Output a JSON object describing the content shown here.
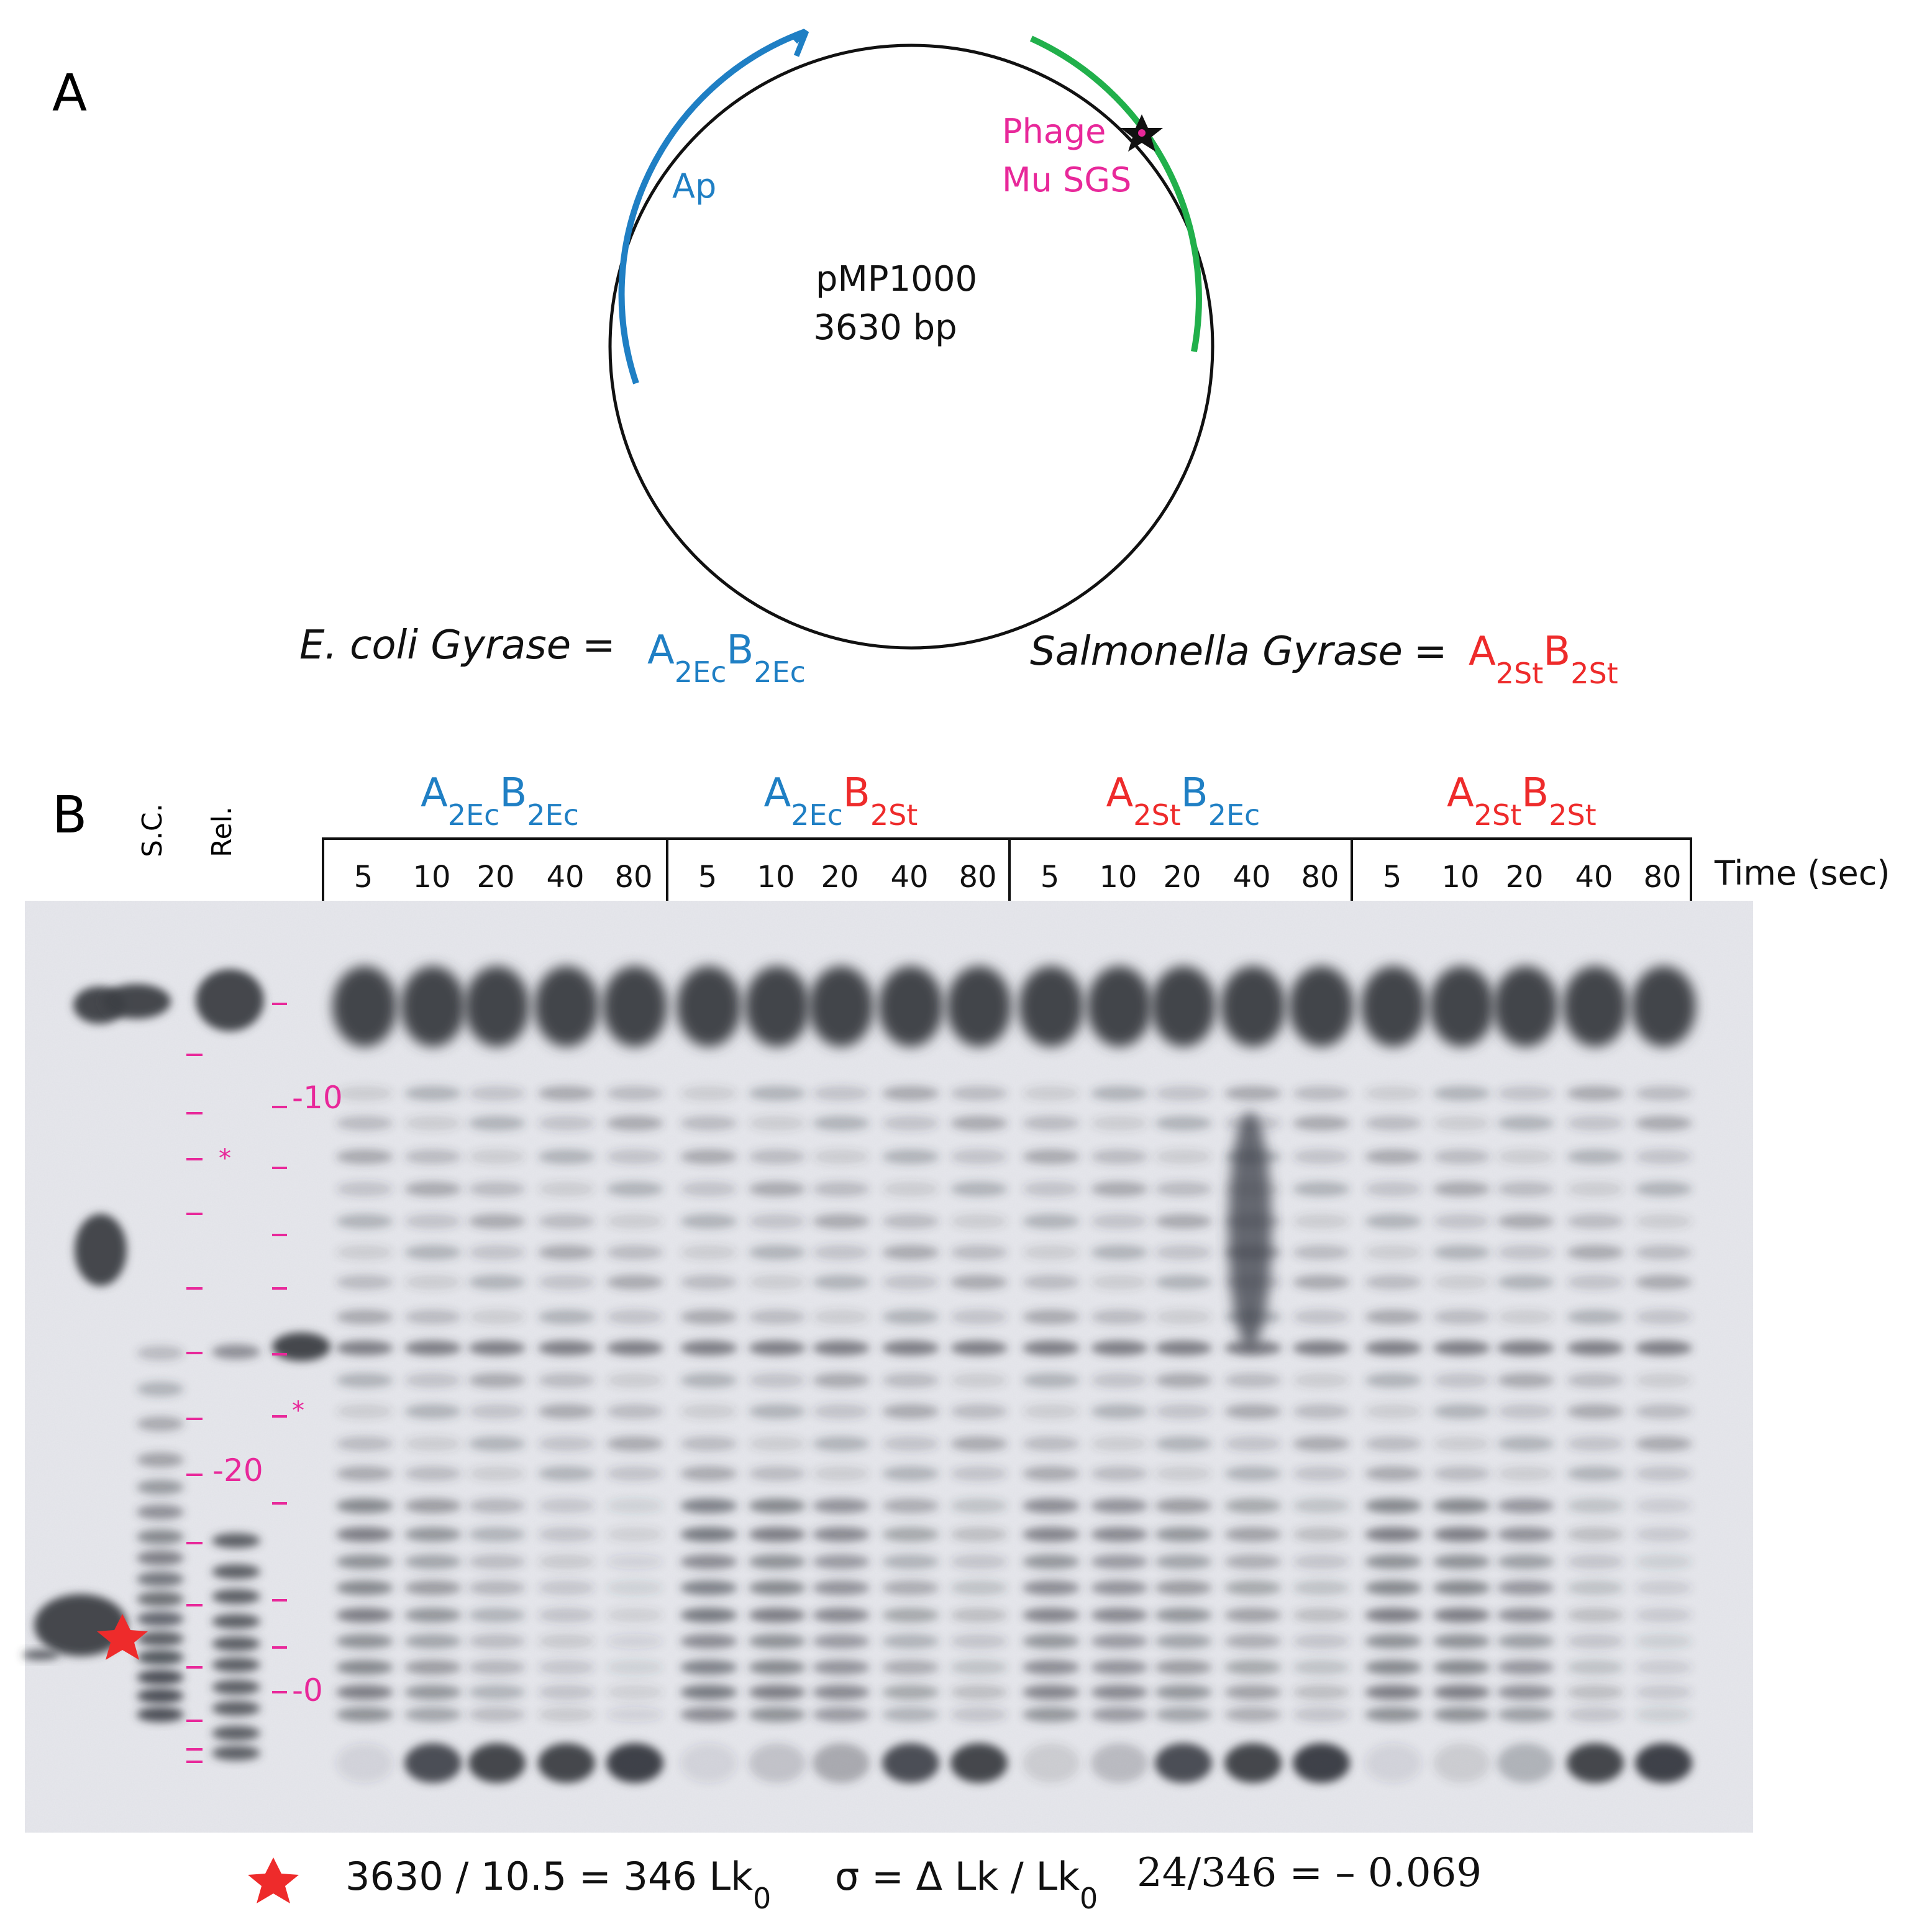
{
  "colors": {
    "blue": "#1f7fc4",
    "green": "#21b04b",
    "magenta": "#e8289a",
    "red": "#ee2b2b",
    "black": "#111111",
    "gel_background": "#e6e7ec",
    "band": "#3b3e45"
  },
  "panel_a": {
    "label": "A",
    "plasmid_name": "pMP1000",
    "plasmid_size": "3630 bp",
    "ap_label": "Ap",
    "sgs_label_line1": "Phage",
    "sgs_label_line2": "Mu SGS",
    "ecoli_label": "E. coli Gyrase",
    "ecoli_formula": {
      "a": "A",
      "a_sub": "2Ec",
      "b": "B",
      "b_sub": "2Ec"
    },
    "salmonella_label": "Salmonella Gyrase",
    "salmonella_formula": {
      "a": "A",
      "a_sub": "2St",
      "b": "B",
      "b_sub": "2St"
    },
    "equals": "="
  },
  "panel_b": {
    "label": "B",
    "lane_sc": "S.C.",
    "lane_rel": "Rel.",
    "time_label": "Time (sec)",
    "groups": [
      {
        "a": "A",
        "a_sub": "2Ec",
        "a_color": "blue",
        "b": "B",
        "b_sub": "2Ec",
        "b_color": "blue",
        "times": [
          "5",
          "10",
          "20",
          "40",
          "80"
        ]
      },
      {
        "a": "A",
        "a_sub": "2Ec",
        "a_color": "blue",
        "b": "B",
        "b_sub": "2St",
        "b_color": "red",
        "times": [
          "5",
          "10",
          "20",
          "40",
          "80"
        ]
      },
      {
        "a": "A",
        "a_sub": "2St",
        "a_color": "red",
        "b": "B",
        "b_sub": "2Ec",
        "b_color": "blue",
        "times": [
          "5",
          "10",
          "20",
          "40",
          "80"
        ]
      },
      {
        "a": "A",
        "a_sub": "2St",
        "a_color": "red",
        "b": "B",
        "b_sub": "2St",
        "b_color": "red",
        "times": [
          "5",
          "10",
          "20",
          "40",
          "80"
        ]
      }
    ],
    "markers": {
      "m10": "-10",
      "m20": "-20",
      "m0": "-0",
      "asterisk": "*"
    }
  },
  "footer": {
    "lk0_calc": "3630 / 10.5 = 346 Lk",
    "lk0_sub": "0",
    "sigma_def": "σ = Δ Lk / Lk",
    "sigma_sub": "0",
    "sigma_value": "24/346 = – 0.069"
  }
}
